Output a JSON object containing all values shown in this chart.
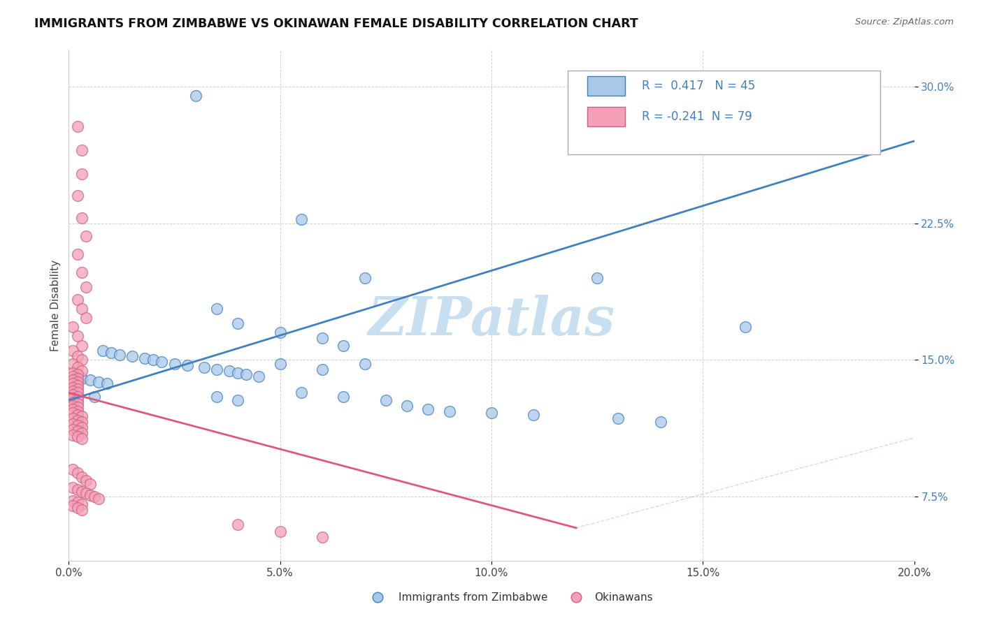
{
  "title": "IMMIGRANTS FROM ZIMBABWE VS OKINAWAN FEMALE DISABILITY CORRELATION CHART",
  "source": "Source: ZipAtlas.com",
  "ylabel": "Female Disability",
  "legend_label1": "Immigrants from Zimbabwe",
  "legend_label2": "Okinawans",
  "R1": 0.417,
  "N1": 45,
  "R2": -0.241,
  "N2": 79,
  "xlim": [
    0.0,
    0.2
  ],
  "ylim": [
    0.04,
    0.32
  ],
  "xticks": [
    0.0,
    0.05,
    0.1,
    0.15,
    0.2
  ],
  "xtick_labels": [
    "0.0%",
    "5.0%",
    "10.0%",
    "15.0%",
    "20.0%"
  ],
  "yticks": [
    0.075,
    0.15,
    0.225,
    0.3
  ],
  "ytick_labels": [
    "7.5%",
    "15.0%",
    "22.5%",
    "30.0%"
  ],
  "color_blue": "#a8c8e8",
  "color_pink": "#f4a0b8",
  "line_blue": "#4080c0",
  "line_pink": "#e05878",
  "watermark": "ZIPatlas",
  "watermark_color": "#c8dff0",
  "blue_trend": [
    0.0,
    0.128,
    0.2,
    0.27
  ],
  "pink_trend": [
    0.0,
    0.132,
    0.12,
    0.058
  ],
  "blue_scatter": [
    [
      0.03,
      0.295
    ],
    [
      0.055,
      0.227
    ],
    [
      0.125,
      0.195
    ],
    [
      0.07,
      0.195
    ],
    [
      0.035,
      0.178
    ],
    [
      0.04,
      0.17
    ],
    [
      0.05,
      0.165
    ],
    [
      0.06,
      0.162
    ],
    [
      0.065,
      0.158
    ],
    [
      0.008,
      0.155
    ],
    [
      0.01,
      0.154
    ],
    [
      0.012,
      0.153
    ],
    [
      0.015,
      0.152
    ],
    [
      0.018,
      0.151
    ],
    [
      0.02,
      0.15
    ],
    [
      0.022,
      0.149
    ],
    [
      0.025,
      0.148
    ],
    [
      0.028,
      0.147
    ],
    [
      0.032,
      0.146
    ],
    [
      0.035,
      0.145
    ],
    [
      0.038,
      0.144
    ],
    [
      0.04,
      0.143
    ],
    [
      0.042,
      0.142
    ],
    [
      0.045,
      0.141
    ],
    [
      0.003,
      0.14
    ],
    [
      0.005,
      0.139
    ],
    [
      0.007,
      0.138
    ],
    [
      0.009,
      0.137
    ],
    [
      0.055,
      0.132
    ],
    [
      0.065,
      0.13
    ],
    [
      0.075,
      0.128
    ],
    [
      0.08,
      0.125
    ],
    [
      0.085,
      0.123
    ],
    [
      0.09,
      0.122
    ],
    [
      0.1,
      0.121
    ],
    [
      0.11,
      0.12
    ],
    [
      0.13,
      0.118
    ],
    [
      0.14,
      0.116
    ],
    [
      0.16,
      0.168
    ],
    [
      0.05,
      0.148
    ],
    [
      0.06,
      0.145
    ],
    [
      0.07,
      0.148
    ],
    [
      0.035,
      0.13
    ],
    [
      0.04,
      0.128
    ],
    [
      0.006,
      0.13
    ]
  ],
  "pink_scatter": [
    [
      0.002,
      0.278
    ],
    [
      0.003,
      0.265
    ],
    [
      0.003,
      0.252
    ],
    [
      0.002,
      0.24
    ],
    [
      0.003,
      0.228
    ],
    [
      0.004,
      0.218
    ],
    [
      0.002,
      0.208
    ],
    [
      0.003,
      0.198
    ],
    [
      0.004,
      0.19
    ],
    [
      0.002,
      0.183
    ],
    [
      0.003,
      0.178
    ],
    [
      0.004,
      0.173
    ],
    [
      0.001,
      0.168
    ],
    [
      0.002,
      0.163
    ],
    [
      0.003,
      0.158
    ],
    [
      0.001,
      0.155
    ],
    [
      0.002,
      0.152
    ],
    [
      0.003,
      0.15
    ],
    [
      0.001,
      0.148
    ],
    [
      0.002,
      0.146
    ],
    [
      0.003,
      0.144
    ],
    [
      0.001,
      0.143
    ],
    [
      0.002,
      0.142
    ],
    [
      0.001,
      0.141
    ],
    [
      0.002,
      0.14
    ],
    [
      0.001,
      0.139
    ],
    [
      0.002,
      0.138
    ],
    [
      0.001,
      0.137
    ],
    [
      0.002,
      0.136
    ],
    [
      0.001,
      0.135
    ],
    [
      0.002,
      0.134
    ],
    [
      0.001,
      0.133
    ],
    [
      0.002,
      0.132
    ],
    [
      0.001,
      0.131
    ],
    [
      0.002,
      0.13
    ],
    [
      0.001,
      0.129
    ],
    [
      0.002,
      0.128
    ],
    [
      0.001,
      0.127
    ],
    [
      0.002,
      0.126
    ],
    [
      0.001,
      0.125
    ],
    [
      0.002,
      0.124
    ],
    [
      0.001,
      0.123
    ],
    [
      0.002,
      0.122
    ],
    [
      0.001,
      0.121
    ],
    [
      0.002,
      0.12
    ],
    [
      0.003,
      0.119
    ],
    [
      0.001,
      0.118
    ],
    [
      0.002,
      0.117
    ],
    [
      0.003,
      0.116
    ],
    [
      0.001,
      0.115
    ],
    [
      0.002,
      0.114
    ],
    [
      0.003,
      0.113
    ],
    [
      0.001,
      0.112
    ],
    [
      0.002,
      0.111
    ],
    [
      0.003,
      0.11
    ],
    [
      0.001,
      0.109
    ],
    [
      0.002,
      0.108
    ],
    [
      0.003,
      0.107
    ],
    [
      0.001,
      0.09
    ],
    [
      0.002,
      0.088
    ],
    [
      0.003,
      0.086
    ],
    [
      0.004,
      0.084
    ],
    [
      0.005,
      0.082
    ],
    [
      0.001,
      0.08
    ],
    [
      0.002,
      0.079
    ],
    [
      0.003,
      0.078
    ],
    [
      0.004,
      0.077
    ],
    [
      0.005,
      0.076
    ],
    [
      0.006,
      0.075
    ],
    [
      0.007,
      0.074
    ],
    [
      0.001,
      0.073
    ],
    [
      0.002,
      0.072
    ],
    [
      0.003,
      0.071
    ],
    [
      0.001,
      0.07
    ],
    [
      0.002,
      0.069
    ],
    [
      0.003,
      0.068
    ],
    [
      0.04,
      0.06
    ],
    [
      0.05,
      0.056
    ],
    [
      0.06,
      0.053
    ]
  ]
}
